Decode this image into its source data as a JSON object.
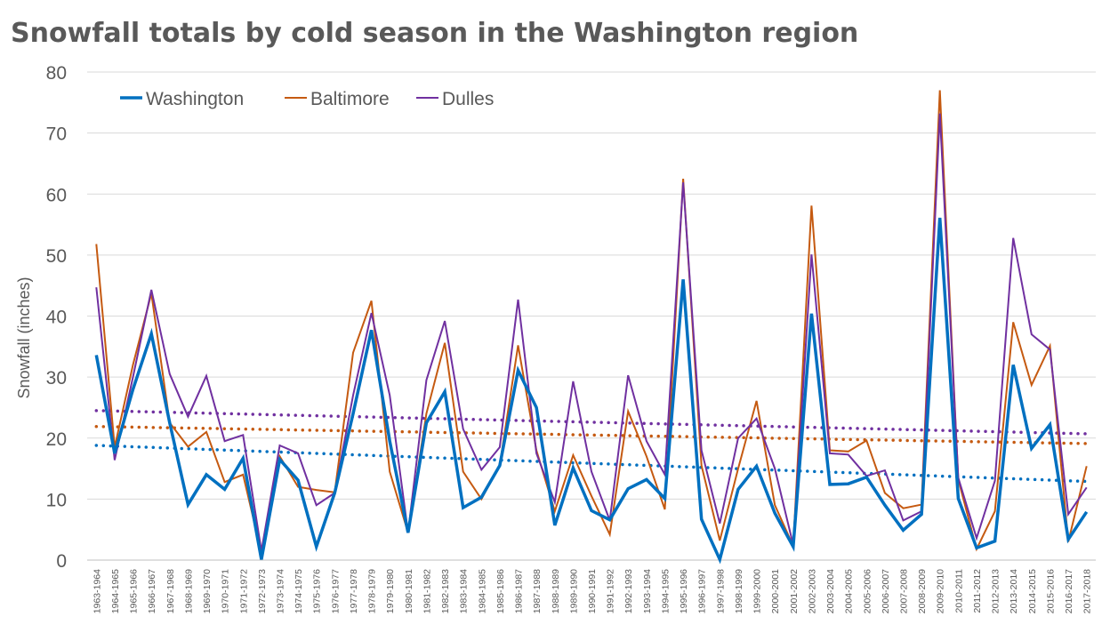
{
  "chart_data": {
    "type": "line",
    "title": "Snowfall totals by cold season in the Washington region",
    "xlabel": "",
    "ylabel": "Snowfall (inches)",
    "ylim": [
      0,
      80
    ],
    "yticks": [
      0,
      10,
      20,
      30,
      40,
      50,
      60,
      70,
      80
    ],
    "grid": true,
    "legend_position": "top-left",
    "categories": [
      "1963-1964",
      "1964-1965",
      "1965-1966",
      "1966-1967",
      "1967-1968",
      "1968-1969",
      "1969-1970",
      "1970-1971",
      "1971-1972",
      "1972-1973",
      "1973-1974",
      "1974-1975",
      "1975-1976",
      "1976-1977",
      "1977-1978",
      "1978-1979",
      "1979-1980",
      "1980-1981",
      "1981-1982",
      "1982-1983",
      "1983-1984",
      "1984-1985",
      "1985-1986",
      "1986-1987",
      "1987-1988",
      "1988-1989",
      "1989-1990",
      "1990-1991",
      "1991-1992",
      "1992-1993",
      "1993-1994",
      "1994-1995",
      "1995-1996",
      "1996-1997",
      "1997-1998",
      "1998-1999",
      "1999-2000",
      "2000-2001",
      "2001-2002",
      "2002-2003",
      "2003-2004",
      "2004-2005",
      "2005-2006",
      "2006-2007",
      "2007-2008",
      "2008-2009",
      "2009-2010",
      "2010-2011",
      "2011-2012",
      "2012-2013",
      "2013-2014",
      "2014-2015",
      "2015-2016",
      "2016-2017",
      "2017-2018"
    ],
    "series": [
      {
        "name": "Washington",
        "color": "#0070C0",
        "trend": [
          18.8,
          12.9
        ],
        "values": [
          33.6,
          17.5,
          28,
          37.1,
          22.5,
          9.1,
          14,
          11.6,
          16.7,
          0.1,
          16.5,
          13.1,
          2.2,
          11,
          24,
          37.7,
          19.5,
          4.5,
          22.5,
          27.6,
          8.6,
          10.3,
          15.5,
          31.1,
          25,
          5.7,
          15.1,
          8.1,
          6.6,
          11.7,
          13.2,
          10.1,
          46,
          6.7,
          0.1,
          11.6,
          15.4,
          7.7,
          2.2,
          40.4,
          12.4,
          12.5,
          13.6,
          9,
          4.9,
          7.5,
          56.1,
          10.1,
          2,
          3.1,
          32,
          18.3,
          22.2,
          3.4,
          7.9
        ]
      },
      {
        "name": "Baltimore",
        "color": "#C55A11",
        "trend": [
          21.9,
          19.1
        ],
        "values": [
          51.8,
          18.5,
          32,
          43.7,
          22.5,
          18.6,
          21,
          12.8,
          14,
          1.2,
          17,
          12,
          11.5,
          11.1,
          34,
          42.5,
          14.5,
          4.5,
          24,
          35.6,
          14.5,
          10,
          15.6,
          35.2,
          18,
          8,
          17.2,
          10.5,
          4.2,
          24.4,
          17,
          8.3,
          62.5,
          15.5,
          3.2,
          15,
          26.1,
          9,
          2.3,
          58.1,
          18,
          17.8,
          19.6,
          11,
          8.5,
          9.1,
          77,
          13.2,
          1.8,
          8,
          39,
          28.7,
          35.1,
          3,
          15.4
        ]
      },
      {
        "name": "Dulles",
        "color": "#7030A0",
        "trend": [
          24.5,
          20.7
        ],
        "values": [
          44.7,
          16.4,
          30,
          44.3,
          30.5,
          23.5,
          30.2,
          19.5,
          20.5,
          1.5,
          18.8,
          17.5,
          9,
          11,
          27,
          40.5,
          27,
          4.5,
          29.5,
          39.2,
          21.5,
          14.8,
          18.5,
          42.7,
          17.5,
          9.5,
          29.3,
          14.5,
          6.5,
          30.3,
          19.5,
          14,
          61.9,
          18,
          6,
          20,
          23.2,
          15,
          2.5,
          50.1,
          17.5,
          17.3,
          13.8,
          14.7,
          6.5,
          8,
          73.2,
          13.5,
          3.6,
          13,
          52.8,
          37,
          34.5,
          7.5,
          11.9
        ]
      }
    ]
  }
}
